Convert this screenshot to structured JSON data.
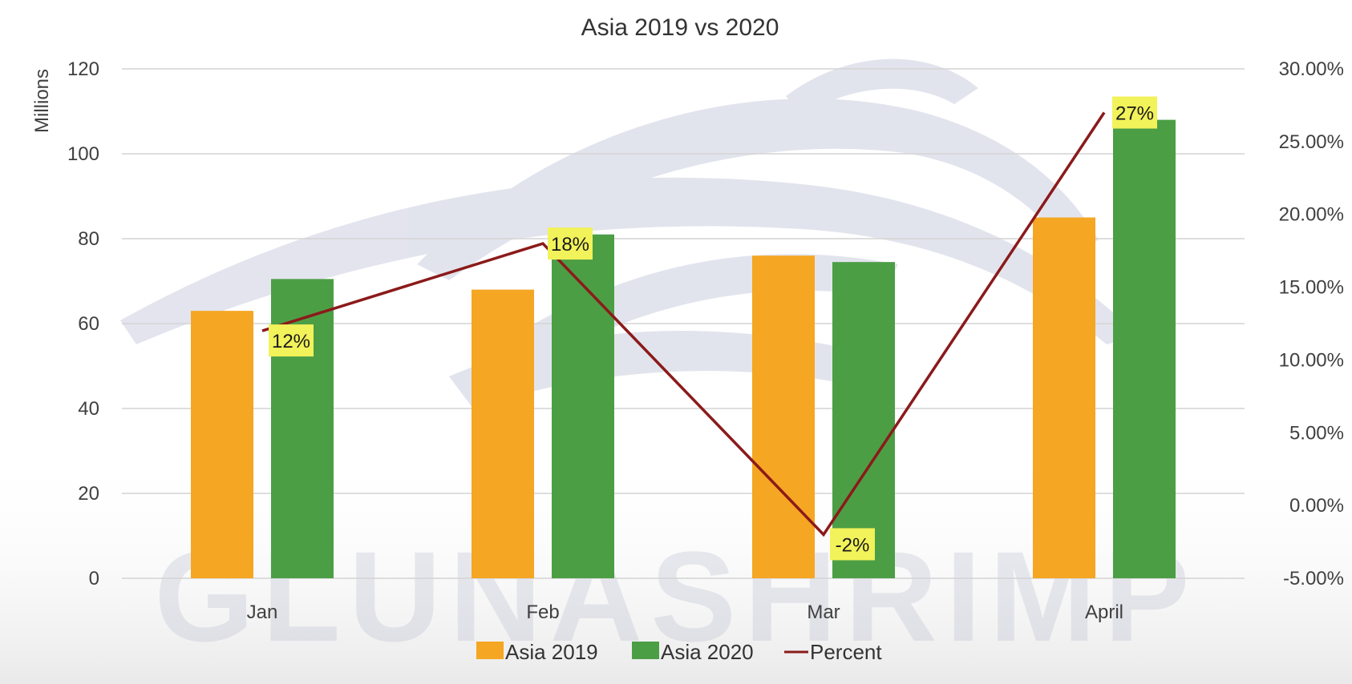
{
  "watermark": {
    "text": "GLUNASHRIMP",
    "color": "#b8bccf"
  },
  "chart_data": {
    "type": "bar",
    "title": "Asia 2019 vs 2020",
    "categories": [
      "Jan",
      "Feb",
      "Mar",
      "April"
    ],
    "series": [
      {
        "name": "Asia 2019",
        "type": "bar",
        "axis": "left",
        "color": "#F5A623",
        "values": [
          63,
          68,
          76,
          85
        ]
      },
      {
        "name": "Asia 2020",
        "type": "bar",
        "axis": "left",
        "color": "#4C9E45",
        "values": [
          70.5,
          81,
          74.5,
          108
        ]
      },
      {
        "name": "Percent",
        "type": "line",
        "axis": "right",
        "color": "#8B1A1A",
        "values": [
          12,
          18,
          -2,
          27
        ],
        "labels": [
          "12%",
          "18%",
          "-2%",
          "27%"
        ],
        "label_bg": "#F2F25A"
      }
    ],
    "y_left": {
      "label": "Millions",
      "min": 0,
      "max": 120,
      "ticks": [
        0,
        20,
        40,
        60,
        80,
        100,
        120
      ],
      "tick_labels": [
        "0",
        "20",
        "40",
        "60",
        "80",
        "100",
        "120"
      ]
    },
    "y_right": {
      "label": "",
      "min": -5,
      "max": 30,
      "ticks": [
        -5,
        0,
        5,
        10,
        15,
        20,
        25,
        30
      ],
      "tick_labels": [
        "-5.00%",
        "0.00%",
        "5.00%",
        "10.00%",
        "15.00%",
        "20.00%",
        "25.00%",
        "30.00%"
      ]
    },
    "grid": true,
    "legend_position": "bottom",
    "gridline_color": "#d4d4d4"
  }
}
